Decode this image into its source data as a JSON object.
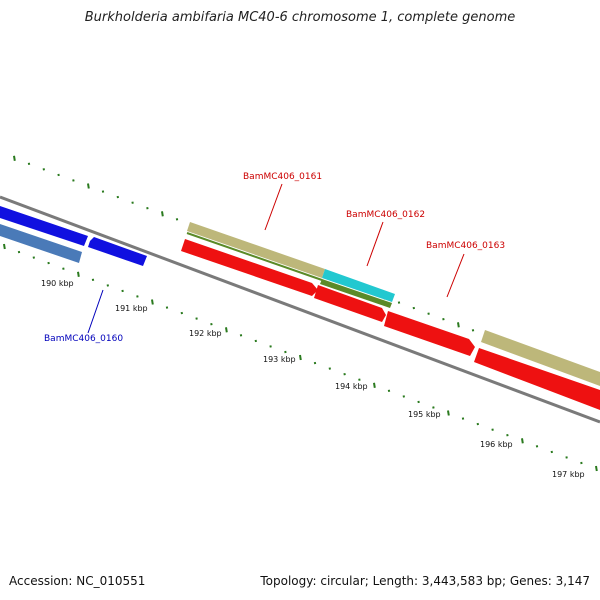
{
  "title": "Burkholderia ambifaria MC40-6 chromosome 1, complete genome",
  "footer": {
    "accession": "Accession: NC_010551",
    "summary": "Topology: circular; Length: 3,443,583 bp; Genes: 3,147"
  },
  "colors": {
    "backbone": "#808080",
    "tick": "#2a7a1e",
    "gene_blue": "#1010e0",
    "gene_steel": "#4a7ab8",
    "gene_red": "#ee1111",
    "gene_khaki": "#bdb77a",
    "gene_cyan": "#22c8d0",
    "gene_olive": "#5a8a28",
    "label_red": "#cc0000",
    "label_blue": "#0000bb"
  },
  "scale_labels": [
    "190 kbp",
    "191 kbp",
    "192 kbp",
    "193 kbp",
    "194 kbp",
    "195 kbp",
    "196 kbp",
    "197 kbp"
  ],
  "gene_labels": {
    "g0160": "BamMC406_0160",
    "g0161": "BamMC406_0161",
    "g0162": "BamMC406_0162",
    "g0163": "BamMC406_0163"
  }
}
